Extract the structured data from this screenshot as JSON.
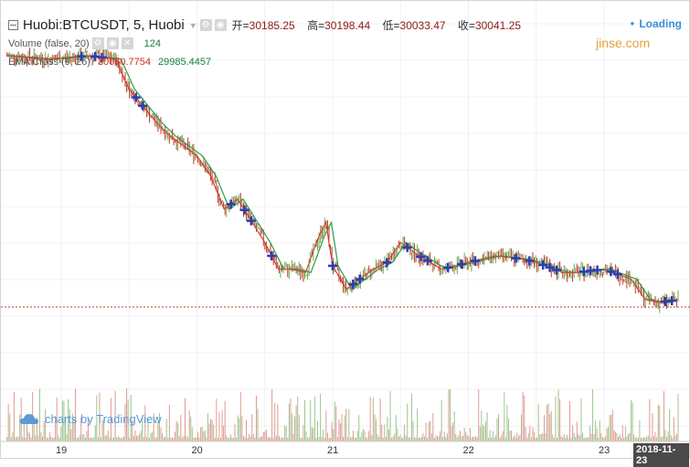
{
  "header": {
    "symbol": "Huobi:BTCUSDT, 5, Huobi",
    "open_label": "开=",
    "open_value": "30185.25",
    "high_label": "高=",
    "high_value": "30198.44",
    "low_label": "低=",
    "low_value": "30033.47",
    "close_label": "收=",
    "close_value": "30041.25",
    "loading": "Loading"
  },
  "indicators": {
    "volume_label": "Volume (false, 20)",
    "volume_value": "124",
    "ema_label": "EMA Cross (9, 26)",
    "ema_fast_value": "30060.7754",
    "ema_slow_value": "29985.4457"
  },
  "watermark": "jinse.com",
  "branding": "charts by TradingView",
  "colors": {
    "up": "#6aa84f",
    "down": "#c0392b",
    "ema_fast": "#d23a2a",
    "ema_slow": "#2e9b4a",
    "cross_marker": "#2a3fb0",
    "last_price_line": "#c0392b"
  },
  "chart_data": {
    "type": "line",
    "x_ticks": [
      "19",
      "20",
      "21",
      "22",
      "23"
    ],
    "x_current_label": "2018-11-23",
    "series": [
      {
        "name": "EMA Cross (9, 26)",
        "x": [
          18.6,
          18.9,
          19.2,
          19.4,
          19.5,
          19.7,
          19.8,
          20.0,
          20.1,
          20.2,
          20.3,
          20.5,
          20.6,
          20.7,
          20.8,
          20.9,
          20.95,
          21.0,
          21.1,
          21.2,
          21.3,
          21.4,
          21.5,
          21.6,
          21.8,
          22.0,
          22.2,
          22.4,
          22.5,
          22.7,
          22.8,
          23.0,
          23.2,
          23.3,
          23.4,
          23.55
        ],
        "values": [
          33700,
          33650,
          33700,
          33650,
          33200,
          32700,
          32500,
          32200,
          31900,
          31400,
          31550,
          30900,
          30500,
          30500,
          30450,
          31000,
          31200,
          30550,
          30200,
          30350,
          30500,
          30600,
          30900,
          30750,
          30500,
          30600,
          30700,
          30650,
          30600,
          30450,
          30450,
          30500,
          30350,
          30050,
          30000,
          30041
        ]
      }
    ],
    "cross_markers_x": [
      19.15,
      19.25,
      19.3,
      19.55,
      19.6,
      20.25,
      20.35,
      20.4,
      20.55,
      21.0,
      21.15,
      21.2,
      21.4,
      21.55,
      21.65,
      21.7,
      21.85,
      21.95,
      22.05,
      22.35,
      22.45,
      22.55,
      22.6,
      22.65,
      22.85,
      22.9,
      22.95,
      23.05,
      23.1,
      23.45,
      23.5
    ],
    "last_close": 30041.25,
    "grid": true
  }
}
